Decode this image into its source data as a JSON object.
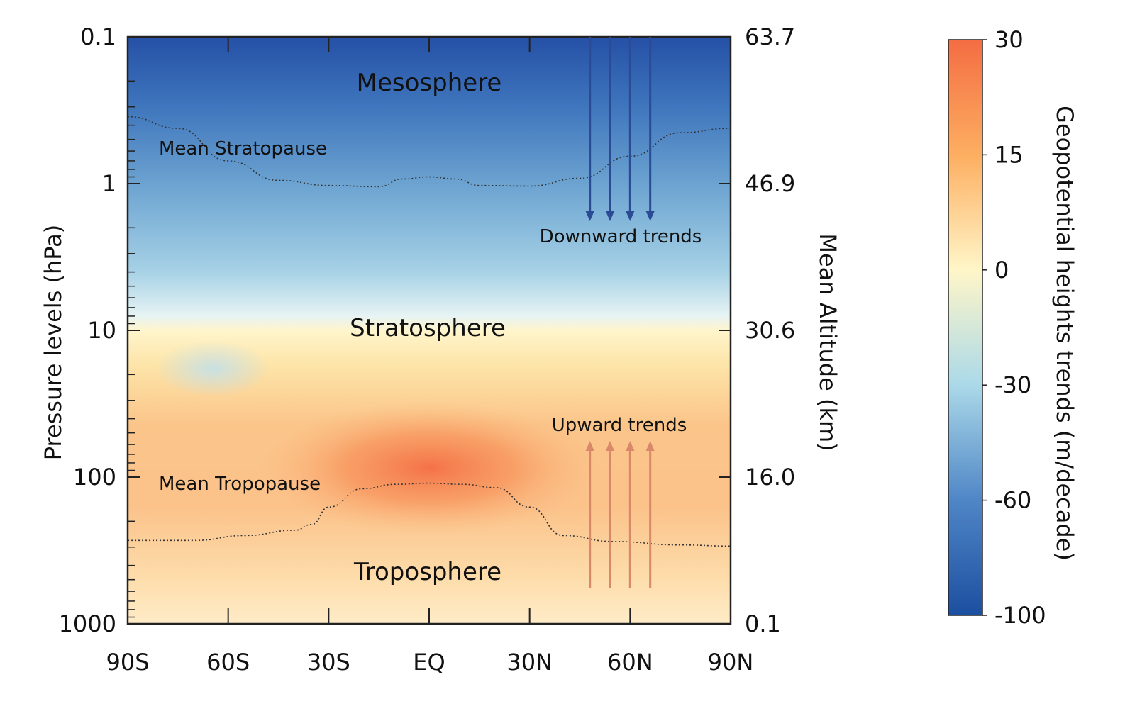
{
  "chart_data": {
    "type": "heatmap",
    "x_axis": {
      "ticks": [
        "90S",
        "60S",
        "30S",
        "EQ",
        "30N",
        "60N",
        "90N"
      ],
      "latitudes": [
        -90,
        -60,
        -30,
        0,
        30,
        60,
        90
      ]
    },
    "y_axis_left": {
      "title": "Pressure levels (hPa)",
      "scale": "log",
      "ticks": [
        "0.1",
        "1",
        "10",
        "100",
        "1000"
      ],
      "values": [
        0.1,
        1,
        10,
        100,
        1000
      ],
      "range": [
        1000,
        0.1
      ]
    },
    "y_axis_right": {
      "title": "Mean Altitude (km)",
      "ticks": [
        "63.7",
        "46.9",
        "30.6",
        "16.0",
        "0.1"
      ],
      "values": [
        63.7,
        46.9,
        30.6,
        16.0,
        0.1
      ]
    },
    "colorbar": {
      "title": "Geopotential heights trends (m/decade)",
      "ticks": [
        "30",
        "15",
        "0",
        "-30",
        "-60",
        "-100"
      ],
      "values": [
        30,
        15,
        0,
        -30,
        -60,
        -100
      ],
      "colors": {
        "high": "#f46d43",
        "warm": "#fdae61",
        "neutral": "#fff6c8",
        "cool": "#abd9e9",
        "cold": "#4f86c6",
        "low": "#1c4fa0"
      }
    },
    "region_labels": [
      "Mesosphere",
      "Stratosphere",
      "Troposphere"
    ],
    "lines": [
      {
        "label": "Mean Stratopause",
        "style": "dotted",
        "points": [
          [
            -90,
            0.35
          ],
          [
            -75,
            0.42
          ],
          [
            -60,
            0.7
          ],
          [
            -45,
            0.95
          ],
          [
            -30,
            1.03
          ],
          [
            -15,
            1.05
          ],
          [
            -8,
            0.93
          ],
          [
            0,
            0.9
          ],
          [
            8,
            0.93
          ],
          [
            15,
            1.03
          ],
          [
            30,
            1.04
          ],
          [
            45,
            0.92
          ],
          [
            60,
            0.65
          ],
          [
            75,
            0.45
          ],
          [
            90,
            0.42
          ]
        ]
      },
      {
        "label": "Mean Tropopause",
        "style": "dotted",
        "points": [
          [
            -90,
            270
          ],
          [
            -70,
            270
          ],
          [
            -55,
            250
          ],
          [
            -40,
            230
          ],
          [
            -35,
            210
          ],
          [
            -30,
            160
          ],
          [
            -20,
            120
          ],
          [
            -10,
            112
          ],
          [
            0,
            110
          ],
          [
            10,
            112
          ],
          [
            20,
            118
          ],
          [
            30,
            160
          ],
          [
            40,
            250
          ],
          [
            55,
            275
          ],
          [
            75,
            290
          ],
          [
            90,
            295
          ]
        ]
      }
    ],
    "annotations": [
      {
        "label": "Downward trends",
        "direction": "down",
        "color": "#2b4b94",
        "arrow_latitudes": [
          48,
          54,
          60,
          66
        ]
      },
      {
        "label": "Upward trends",
        "direction": "up",
        "color": "#d9896a",
        "arrow_latitudes": [
          48,
          54,
          60,
          66
        ]
      }
    ],
    "field_summary": {
      "mesosphere": "strong negative trends (about -60 to -100)",
      "upper_stratosphere": "negative trends (about -30 to -60)",
      "near_10hPa": "near zero",
      "troposphere_lower_stratosphere": "positive trends, maximum about +30 over the tropics near 100 hPa"
    }
  }
}
